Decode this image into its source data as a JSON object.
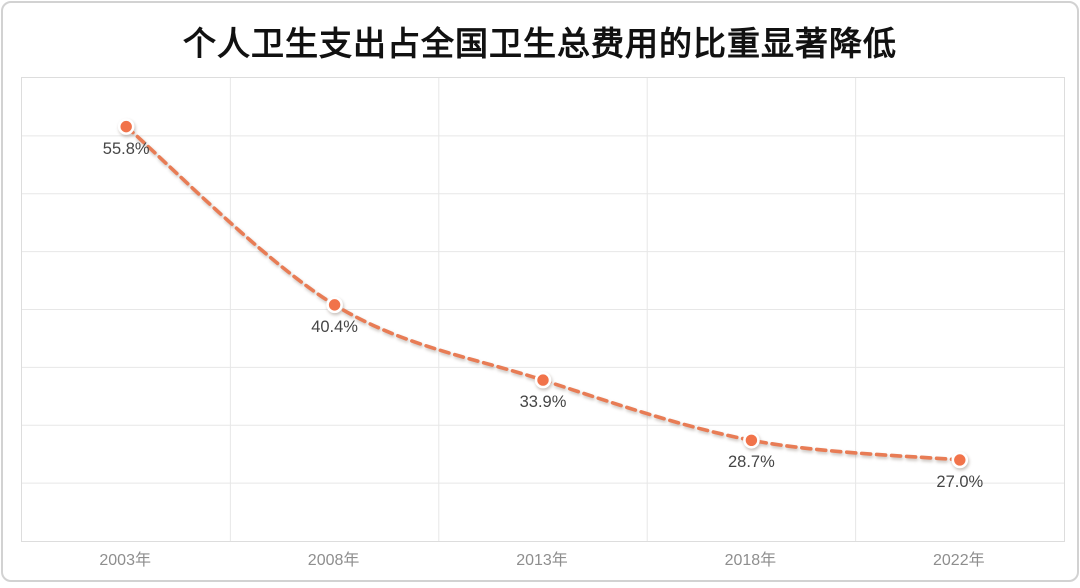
{
  "card": {
    "title": "个人卫生支出占全国卫生总费用的比重显著降低"
  },
  "chart_data": {
    "type": "line",
    "title": "个人卫生支出占全国卫生总费用的比重显著降低",
    "categories": [
      "2003年",
      "2008年",
      "2013年",
      "2018年",
      "2022年"
    ],
    "values": [
      55.8,
      40.4,
      33.9,
      28.7,
      27.0
    ],
    "point_labels": [
      "55.8%",
      "40.4%",
      "33.9%",
      "28.7%",
      "27.0%"
    ],
    "xlabel": "",
    "ylabel": "",
    "ylim": [
      20,
      60
    ],
    "y_gridline_step": 5,
    "x_divisions": 5,
    "grid": true,
    "legend": "none",
    "line_style": "dashed",
    "smooth": true,
    "colors": {
      "line": "#e87c55",
      "marker_fill": "#f1734a",
      "marker_ring": "#ffffff",
      "gridline": "#e7e7e7",
      "plot_border": "#dddddd",
      "title_text": "#111111",
      "data_label_text": "#454545",
      "axis_label_text": "#8e8e8e",
      "card_border": "#d2d2d2"
    }
  }
}
